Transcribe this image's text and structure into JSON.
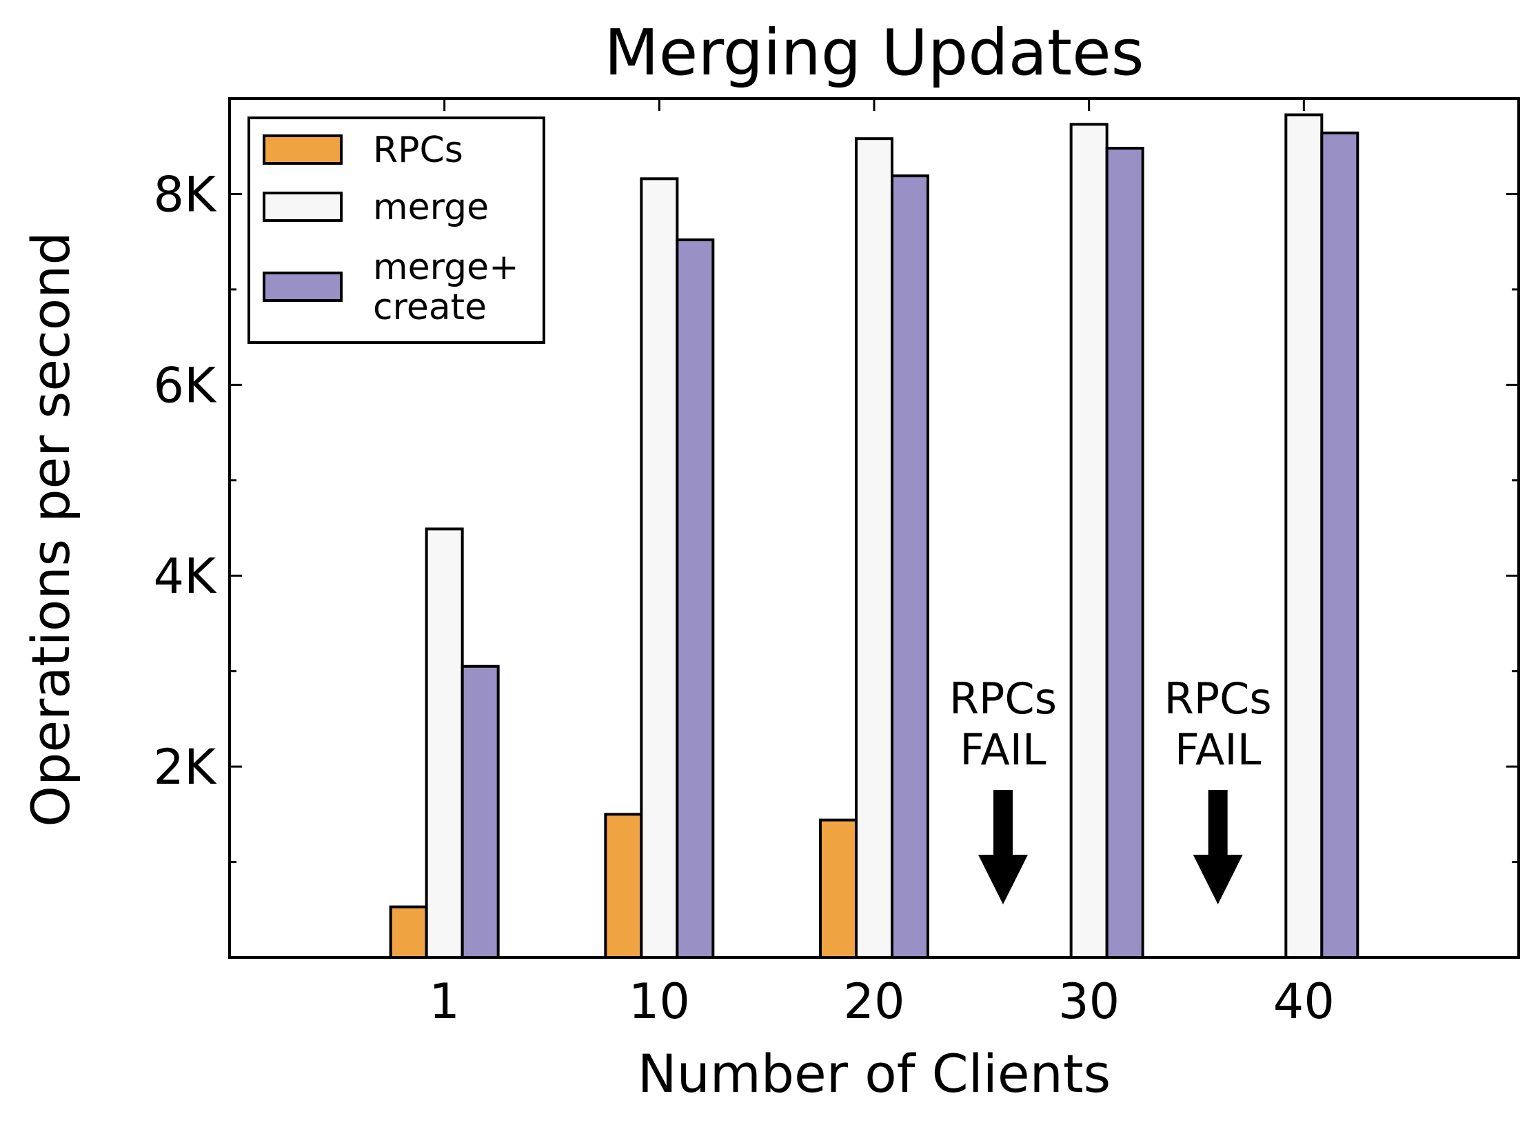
{
  "chart_data": {
    "type": "bar",
    "title": "Merging Updates",
    "xlabel": "Number of Clients",
    "ylabel": "Operations per second",
    "categories": [
      "1",
      "10",
      "20",
      "30",
      "40"
    ],
    "x_range": [
      -1,
      5
    ],
    "ylim": [
      0,
      9000
    ],
    "yticks_major": [
      2000,
      4000,
      6000,
      8000
    ],
    "ytick_labels": [
      "2K",
      "4K",
      "6K",
      "8K"
    ],
    "yticks_minor": [
      1000,
      3000,
      5000,
      7000
    ],
    "legend_position": "top-left",
    "grid": false,
    "series": [
      {
        "name": "RPCs",
        "color": "#f0a441",
        "values": [
          530,
          1500,
          1440,
          null,
          null
        ]
      },
      {
        "name": "merge",
        "color": "#f7f7f7",
        "values": [
          4490,
          8160,
          8580,
          8730,
          8830
        ]
      },
      {
        "name_lines": [
          "merge+",
          "create"
        ],
        "color": "#9990c5",
        "values": [
          3050,
          7520,
          8190,
          8480,
          8640
        ]
      }
    ],
    "annotations": [
      {
        "lines": [
          "RPCs",
          "FAIL"
        ],
        "category_index": 3,
        "offset": -0.4
      },
      {
        "lines": [
          "RPCs",
          "FAIL"
        ],
        "category_index": 4,
        "offset": -0.4
      }
    ]
  }
}
